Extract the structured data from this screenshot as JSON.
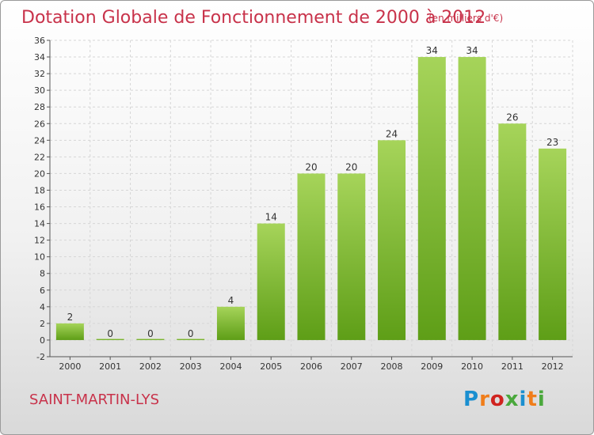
{
  "title": "Dotation Globale de Fonctionnement de 2000 à 2012",
  "unit": "(en milliers d'€)",
  "commune": "SAINT-MARTIN-LYS",
  "logo": {
    "text": "Proxiti",
    "colors": [
      "#1a8fd0",
      "#f07d1a",
      "#d0231f",
      "#4aa83c",
      "#1a8fd0",
      "#f07d1a",
      "#4aa83c"
    ]
  },
  "colors": {
    "bar_top": "#a6d45a",
    "bar_bottom": "#5e9e17",
    "title": "#c8324a"
  },
  "chart_data": {
    "type": "bar",
    "categories": [
      "2000",
      "2001",
      "2002",
      "2003",
      "2004",
      "2005",
      "2006",
      "2007",
      "2008",
      "2009",
      "2010",
      "2011",
      "2012"
    ],
    "values": [
      2,
      0,
      0,
      0,
      4,
      14,
      20,
      20,
      24,
      34,
      34,
      26,
      23
    ],
    "ylim": [
      -2,
      36
    ],
    "yticks": [
      -2,
      0,
      2,
      4,
      6,
      8,
      10,
      12,
      14,
      16,
      18,
      20,
      22,
      24,
      26,
      28,
      30,
      32,
      34,
      36
    ],
    "grid": true,
    "legend": "none"
  }
}
